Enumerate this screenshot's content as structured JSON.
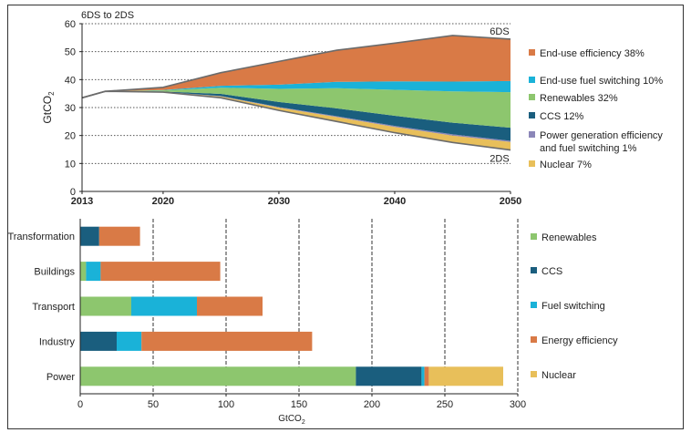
{
  "chart_data": [
    {
      "type": "area",
      "title": "6DS to 2DS",
      "ylabel": "GtCO2",
      "xlim": [
        2013,
        2050
      ],
      "ylim": [
        0,
        60
      ],
      "yticks": [
        0,
        10,
        20,
        30,
        40,
        50,
        60
      ],
      "xticks": [
        2013,
        2020,
        2030,
        2040,
        2050
      ],
      "grid": "horizontal dotted",
      "legend_placement": "right",
      "annotations": [
        {
          "text": "6DS",
          "x": 2050,
          "y": 54.5
        },
        {
          "text": "2DS",
          "x": 2050,
          "y": 14.8
        }
      ],
      "x": [
        2013,
        2015,
        2020,
        2025,
        2030,
        2035,
        2040,
        2045,
        2050
      ],
      "baseline_2DS": [
        33.5,
        35.8,
        35.5,
        33.5,
        29,
        25,
        21,
        17.5,
        14.8
      ],
      "series": [
        {
          "name": "Nuclear 7%",
          "color": "#e8bf5a",
          "values": [
            0,
            0,
            0.1,
            0.5,
            1.0,
            1.6,
            2.1,
            2.5,
            2.9
          ]
        },
        {
          "name": "Power generation efficiency and fuel switching 1%",
          "color": "#8b86b8",
          "values": [
            0,
            0,
            0.05,
            0.1,
            0.2,
            0.3,
            0.35,
            0.4,
            0.4
          ]
        },
        {
          "name": "CCS 12%",
          "color": "#1a5e7e",
          "values": [
            0,
            0,
            0.1,
            0.8,
            1.8,
            2.8,
            3.6,
            4.2,
            4.7
          ]
        },
        {
          "name": "Renewables 32%",
          "color": "#8dc66e",
          "values": [
            0,
            0,
            0.4,
            2.2,
            4.7,
            7.2,
            9.3,
            11.2,
            12.7
          ]
        },
        {
          "name": "End-use fuel switching 10%",
          "color": "#1ab2d8",
          "values": [
            0,
            0,
            0.1,
            0.7,
            1.5,
            2.3,
            3.0,
            3.5,
            4.0
          ]
        },
        {
          "name": "End-use efficiency 38%",
          "color": "#d97a46",
          "values": [
            0,
            0,
            1.0,
            4.7,
            8.3,
            11.3,
            13.7,
            16.5,
            15.0
          ]
        }
      ]
    },
    {
      "type": "bar",
      "orientation": "horizontal",
      "stacked": true,
      "xlabel": "GtCO2",
      "xlim": [
        0,
        300
      ],
      "xticks": [
        0,
        50,
        100,
        150,
        200,
        250,
        300
      ],
      "grid": "vertical dashed",
      "legend_placement": "right",
      "categories": [
        "Transformation",
        "Buildings",
        "Transport",
        "Industry",
        "Power"
      ],
      "series": [
        {
          "name": "Renewables",
          "color": "#8dc66e",
          "values": [
            0,
            4,
            35,
            0,
            189
          ]
        },
        {
          "name": "CCS",
          "color": "#1a5e7e",
          "values": [
            13,
            0,
            0,
            25,
            45
          ]
        },
        {
          "name": "Fuel switching",
          "color": "#1ab2d8",
          "values": [
            0,
            10,
            45,
            17,
            2
          ]
        },
        {
          "name": "Energy efficiency",
          "color": "#d97a46",
          "values": [
            28,
            82,
            45,
            117,
            3
          ]
        },
        {
          "name": "Nuclear",
          "color": "#e8bf5a",
          "values": [
            0,
            0,
            0,
            0,
            51
          ]
        }
      ]
    }
  ]
}
